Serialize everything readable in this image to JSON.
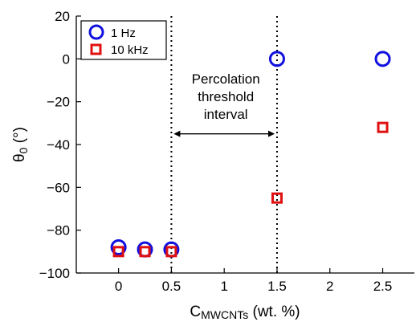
{
  "chart_data": {
    "type": "scatter",
    "xlabel_main": "C",
    "xlabel_sub": "MWCNTs",
    "xlabel_unit": " (wt. %)",
    "ylabel_main": "θ",
    "ylabel_sub": "0",
    "ylabel_unit": " (°)",
    "xlim": [
      -0.4,
      2.8
    ],
    "ylim": [
      -100,
      20
    ],
    "xticks": [
      0,
      0.5,
      1,
      1.5,
      2,
      2.5
    ],
    "xtick_labels": [
      "0",
      "0.5",
      "1",
      "1.5",
      "2",
      "2.5"
    ],
    "yticks": [
      -100,
      -80,
      -60,
      -40,
      -20,
      0,
      20
    ],
    "ytick_labels": [
      "−100",
      "−80",
      "−60",
      "−40",
      "−20",
      "0",
      "20"
    ],
    "grid": false,
    "legend_position": "top-left",
    "series": [
      {
        "name": "1 Hz",
        "marker": "circle",
        "color": "#1010e0",
        "x": [
          0,
          0.25,
          0.5,
          1.5,
          2.5
        ],
        "y": [
          -88,
          -89,
          -89,
          0,
          0
        ]
      },
      {
        "name": "10 kHz",
        "marker": "square",
        "color": "#e01010",
        "x": [
          0,
          0.25,
          0.5,
          1.5,
          2.5
        ],
        "y": [
          -90,
          -90,
          -90,
          -65,
          -32
        ]
      }
    ],
    "reference_lines_x": [
      0.5,
      1.5
    ],
    "annotation": {
      "lines": [
        "Percolation",
        "threshold",
        "interval"
      ],
      "arrow_from": 0.5,
      "arrow_to": 1.5,
      "arrow_y": -35
    }
  }
}
